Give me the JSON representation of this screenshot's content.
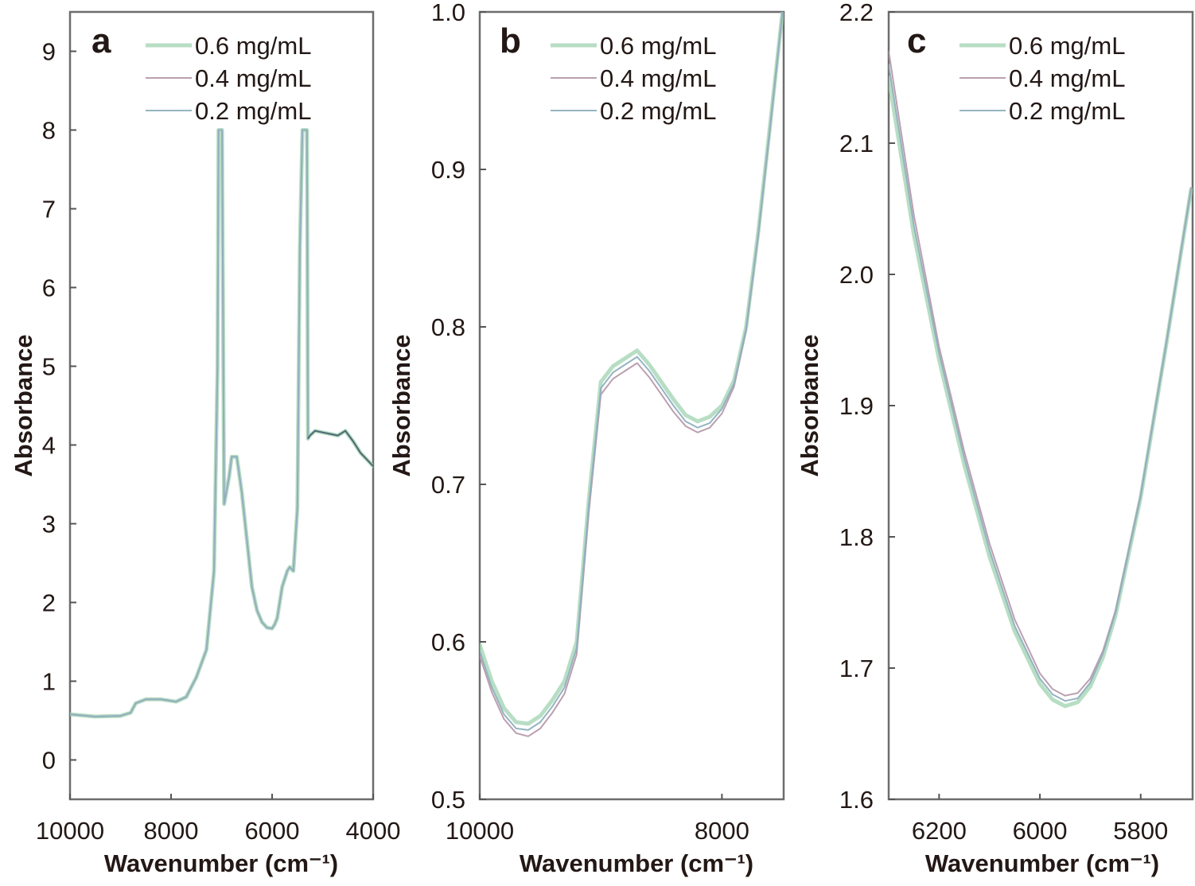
{
  "figure": {
    "legend_entries": [
      "0.6 mg/mL",
      "0.4 mg/mL",
      "0.2 mg/mL"
    ],
    "series_colors": {
      "0.6 mg/mL": "#9fd3b0",
      "0.4 mg/mL": "#b79aac",
      "0.2 mg/mL": "#8fb0bf"
    }
  },
  "chart_data": [
    {
      "panel": "a",
      "type": "line",
      "title": "",
      "xlabel": "Wavenumber (cm⁻¹)",
      "ylabel": "Absorbance",
      "xlim": [
        10000,
        4000
      ],
      "ylim": [
        -0.5,
        9.5
      ],
      "x_reversed": true,
      "xticks": [
        10000,
        8000,
        6000,
        4000
      ],
      "xtick_labels": [
        "10000",
        "8000",
        "6000",
        "4000"
      ],
      "yticks": [
        0,
        1,
        2,
        3,
        4,
        5,
        6,
        7,
        8,
        9
      ],
      "ytick_labels": [
        "0",
        "1",
        "2",
        "3",
        "4",
        "5",
        "6",
        "7",
        "8",
        "9"
      ],
      "grid": false,
      "legend_position": "top-right",
      "series": [
        {
          "name": "0.6 mg/mL",
          "x": [
            10000,
            9500,
            9000,
            8800,
            8700,
            8500,
            8200,
            7900,
            7700,
            7500,
            7300,
            7150,
            7080,
            7060,
            7040,
            7030,
            7010,
            6990,
            6950,
            6850,
            6800,
            6700,
            6600,
            6500,
            6400,
            6300,
            6200,
            6100,
            6000,
            5950,
            5900,
            5800,
            5700,
            5650,
            5580,
            5500,
            5450,
            5400,
            5370,
            5350,
            5330,
            5310,
            5290,
            5250,
            5150,
            5000,
            4850,
            4700,
            4550,
            4400,
            4250,
            4100,
            4000
          ],
          "y": [
            0.58,
            0.55,
            0.56,
            0.6,
            0.72,
            0.77,
            0.77,
            0.74,
            0.8,
            1.05,
            1.4,
            2.4,
            5.0,
            8.0,
            8.0,
            8.0,
            8.0,
            8.0,
            3.25,
            3.6,
            3.85,
            3.85,
            3.4,
            2.8,
            2.2,
            1.9,
            1.75,
            1.68,
            1.67,
            1.72,
            1.8,
            2.2,
            2.4,
            2.45,
            2.4,
            3.2,
            6.5,
            8.0,
            8.0,
            8.0,
            8.0,
            8.0,
            4.08,
            4.12,
            4.18,
            4.16,
            4.14,
            4.12,
            4.18,
            4.05,
            3.9,
            3.8,
            3.73
          ]
        },
        {
          "name": "0.4 mg/mL",
          "x": [
            10000,
            9500,
            9000,
            8800,
            8700,
            8500,
            8200,
            7900,
            7700,
            7500,
            7300,
            7150,
            7080,
            7060,
            7040,
            7030,
            7010,
            6990,
            6950,
            6850,
            6800,
            6700,
            6600,
            6500,
            6400,
            6300,
            6200,
            6100,
            6000,
            5950,
            5900,
            5800,
            5700,
            5650,
            5580,
            5500,
            5450,
            5400,
            5370,
            5350,
            5330,
            5310,
            5290,
            5250,
            5150,
            5000,
            4850,
            4700,
            4550,
            4400,
            4250,
            4100,
            4000
          ],
          "y": [
            0.58,
            0.55,
            0.56,
            0.6,
            0.72,
            0.77,
            0.77,
            0.74,
            0.8,
            1.05,
            1.4,
            2.4,
            5.0,
            8.0,
            8.0,
            8.0,
            8.0,
            8.0,
            3.25,
            3.6,
            3.85,
            3.85,
            3.4,
            2.8,
            2.2,
            1.9,
            1.75,
            1.68,
            1.67,
            1.72,
            1.8,
            2.2,
            2.4,
            2.45,
            2.4,
            3.2,
            6.5,
            8.0,
            8.0,
            8.0,
            8.0,
            8.0,
            4.08,
            4.12,
            4.18,
            4.16,
            4.14,
            4.12,
            4.18,
            4.05,
            3.9,
            3.8,
            3.73
          ]
        },
        {
          "name": "0.2 mg/mL",
          "x": [
            10000,
            9500,
            9000,
            8800,
            8700,
            8500,
            8200,
            7900,
            7700,
            7500,
            7300,
            7150,
            7080,
            7060,
            7040,
            7030,
            7010,
            6990,
            6950,
            6850,
            6800,
            6700,
            6600,
            6500,
            6400,
            6300,
            6200,
            6100,
            6000,
            5950,
            5900,
            5800,
            5700,
            5650,
            5580,
            5500,
            5450,
            5400,
            5370,
            5350,
            5330,
            5310,
            5290,
            5250,
            5150,
            5000,
            4850,
            4700,
            4550,
            4400,
            4250,
            4100,
            4000
          ],
          "y": [
            0.58,
            0.55,
            0.56,
            0.6,
            0.72,
            0.77,
            0.77,
            0.74,
            0.8,
            1.05,
            1.4,
            2.4,
            5.0,
            8.0,
            8.0,
            8.0,
            8.0,
            8.0,
            3.25,
            3.6,
            3.85,
            3.85,
            3.4,
            2.8,
            2.2,
            1.9,
            1.75,
            1.68,
            1.67,
            1.72,
            1.8,
            2.2,
            2.4,
            2.45,
            2.4,
            3.2,
            6.5,
            8.0,
            8.0,
            8.0,
            8.0,
            8.0,
            4.08,
            4.12,
            4.18,
            4.16,
            4.14,
            4.12,
            4.18,
            4.05,
            3.9,
            3.8,
            3.73
          ]
        }
      ]
    },
    {
      "panel": "b",
      "type": "line",
      "title": "",
      "xlabel": "Wavenumber (cm⁻¹)",
      "ylabel": "Absorbance",
      "xlim": [
        10000,
        7490
      ],
      "ylim": [
        0.5,
        1.0
      ],
      "x_reversed": true,
      "xticks": [
        10000,
        8000
      ],
      "xtick_labels": [
        "10000",
        "8000"
      ],
      "yticks": [
        0.5,
        0.6,
        0.7,
        0.8,
        0.9,
        1.0
      ],
      "ytick_labels": [
        "0.5",
        "0.6",
        "0.7",
        "0.8",
        "0.9",
        "1.0"
      ],
      "grid": false,
      "legend_position": "top-right",
      "series": [
        {
          "name": "0.6 mg/mL",
          "x": [
            10000,
            9900,
            9800,
            9700,
            9600,
            9500,
            9400,
            9300,
            9200,
            9100,
            9000,
            8900,
            8800,
            8700,
            8600,
            8500,
            8400,
            8300,
            8200,
            8100,
            8000,
            7900,
            7800,
            7700,
            7600,
            7500
          ],
          "y": [
            0.598,
            0.575,
            0.558,
            0.549,
            0.548,
            0.553,
            0.563,
            0.575,
            0.6,
            0.69,
            0.765,
            0.775,
            0.78,
            0.785,
            0.776,
            0.765,
            0.754,
            0.744,
            0.74,
            0.743,
            0.75,
            0.766,
            0.8,
            0.86,
            0.93,
            1.0
          ]
        },
        {
          "name": "0.4 mg/mL",
          "x": [
            10000,
            9900,
            9800,
            9700,
            9600,
            9500,
            9400,
            9300,
            9200,
            9100,
            9000,
            8900,
            8800,
            8700,
            8600,
            8500,
            8400,
            8300,
            8200,
            8100,
            8000,
            7900,
            7800,
            7700,
            7600,
            7500
          ],
          "y": [
            0.591,
            0.568,
            0.551,
            0.542,
            0.54,
            0.545,
            0.555,
            0.567,
            0.592,
            0.682,
            0.757,
            0.767,
            0.772,
            0.777,
            0.768,
            0.757,
            0.746,
            0.737,
            0.733,
            0.736,
            0.745,
            0.762,
            0.798,
            0.858,
            0.928,
            1.0
          ]
        },
        {
          "name": "0.2 mg/mL",
          "x": [
            10000,
            9900,
            9800,
            9700,
            9600,
            9500,
            9400,
            9300,
            9200,
            9100,
            9000,
            8900,
            8800,
            8700,
            8600,
            8500,
            8400,
            8300,
            8200,
            8100,
            8000,
            7900,
            7800,
            7700,
            7600,
            7500
          ],
          "y": [
            0.594,
            0.571,
            0.554,
            0.545,
            0.544,
            0.549,
            0.559,
            0.571,
            0.596,
            0.686,
            0.761,
            0.771,
            0.776,
            0.781,
            0.772,
            0.761,
            0.75,
            0.74,
            0.736,
            0.739,
            0.748,
            0.764,
            0.799,
            0.859,
            0.929,
            1.0
          ]
        }
      ]
    },
    {
      "panel": "c",
      "type": "line",
      "title": "",
      "xlabel": "Wavenumber (cm⁻¹)",
      "ylabel": "Absorbance",
      "xlim": [
        6300,
        5697
      ],
      "ylim": [
        1.6,
        2.2
      ],
      "x_reversed": true,
      "xticks": [
        6200,
        6000,
        5800
      ],
      "xtick_labels": [
        "6200",
        "6000",
        "5800"
      ],
      "yticks": [
        1.6,
        1.7,
        1.8,
        1.9,
        2.0,
        2.1,
        2.2
      ],
      "ytick_labels": [
        "1.6",
        "1.7",
        "1.8",
        "1.9",
        "2.0",
        "2.1",
        "2.2"
      ],
      "grid": false,
      "legend_position": "top-right",
      "series": [
        {
          "name": "0.6 mg/mL",
          "x": [
            6300,
            6250,
            6200,
            6150,
            6100,
            6050,
            6000,
            5975,
            5950,
            5925,
            5900,
            5875,
            5850,
            5800,
            5750,
            5700
          ],
          "y": [
            2.15,
            2.03,
            1.935,
            1.855,
            1.785,
            1.728,
            1.688,
            1.676,
            1.671,
            1.674,
            1.686,
            1.708,
            1.74,
            1.83,
            1.945,
            2.065
          ]
        },
        {
          "name": "0.4 mg/mL",
          "x": [
            6300,
            6250,
            6200,
            6150,
            6100,
            6050,
            6000,
            5975,
            5950,
            5925,
            5900,
            5875,
            5850,
            5800,
            5750,
            5700
          ],
          "y": [
            2.17,
            2.045,
            1.945,
            1.865,
            1.795,
            1.737,
            1.696,
            1.684,
            1.679,
            1.681,
            1.692,
            1.713,
            1.744,
            1.832,
            1.946,
            2.066
          ]
        },
        {
          "name": "0.2 mg/mL",
          "x": [
            6300,
            6250,
            6200,
            6150,
            6100,
            6050,
            6000,
            5975,
            5950,
            5925,
            5900,
            5875,
            5850,
            5800,
            5750,
            5700
          ],
          "y": [
            2.16,
            2.037,
            1.94,
            1.86,
            1.79,
            1.732,
            1.692,
            1.68,
            1.675,
            1.677,
            1.689,
            1.711,
            1.742,
            1.831,
            1.945,
            2.065
          ]
        }
      ]
    }
  ]
}
